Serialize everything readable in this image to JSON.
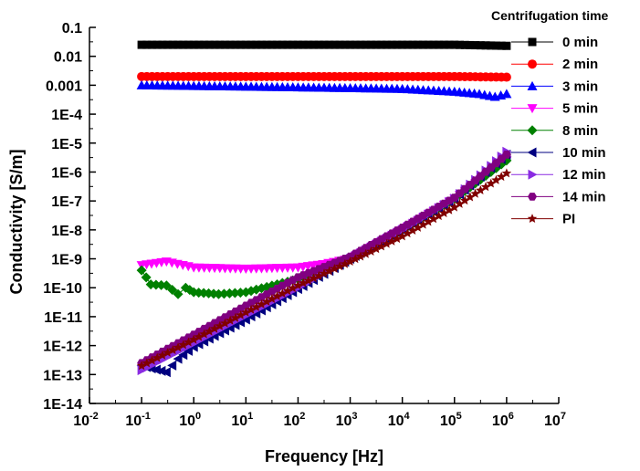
{
  "chart_data": {
    "type": "scatter",
    "xlabel": "Frequency [Hz]",
    "ylabel": "Conductivity [S/m]",
    "x_scale": "log",
    "y_scale": "log",
    "xlim": [
      0.01,
      10000000
    ],
    "ylim": [
      1e-14,
      0.1
    ],
    "x_ticks": [
      {
        "value": 0.01,
        "base": "10",
        "exp": "-2"
      },
      {
        "value": 0.1,
        "base": "10",
        "exp": "-1"
      },
      {
        "value": 1,
        "base": "10",
        "exp": "0"
      },
      {
        "value": 10,
        "base": "10",
        "exp": "1"
      },
      {
        "value": 100,
        "base": "10",
        "exp": "2"
      },
      {
        "value": 1000,
        "base": "10",
        "exp": "3"
      },
      {
        "value": 10000,
        "base": "10",
        "exp": "4"
      },
      {
        "value": 100000,
        "base": "10",
        "exp": "5"
      },
      {
        "value": 1000000,
        "base": "10",
        "exp": "6"
      },
      {
        "value": 10000000,
        "base": "10",
        "exp": "7"
      }
    ],
    "y_ticks": [
      {
        "value": 0.1,
        "label": "0.1"
      },
      {
        "value": 0.01,
        "label": "0.01"
      },
      {
        "value": 0.001,
        "label": "0.001"
      },
      {
        "value": 0.0001,
        "label": "1E-4"
      },
      {
        "value": 1e-05,
        "label": "1E-5"
      },
      {
        "value": 1e-06,
        "label": "1E-6"
      },
      {
        "value": 1e-07,
        "label": "1E-7"
      },
      {
        "value": 1e-08,
        "label": "1E-8"
      },
      {
        "value": 1e-09,
        "label": "1E-9"
      },
      {
        "value": 1e-10,
        "label": "1E-10"
      },
      {
        "value": 1e-11,
        "label": "1E-11"
      },
      {
        "value": 1e-12,
        "label": "1E-12"
      },
      {
        "value": 1e-13,
        "label": "1E-13"
      },
      {
        "value": 1e-14,
        "label": "1E-14"
      }
    ],
    "legend_title": "Centrifugation time",
    "legend_position": "right",
    "grid": false,
    "series": [
      {
        "name": "0 min",
        "color": "#000000",
        "marker": "square",
        "points": [
          [
            0.1,
            0.025
          ],
          [
            1,
            0.025
          ],
          [
            10,
            0.025
          ],
          [
            100,
            0.025
          ],
          [
            1000,
            0.025
          ],
          [
            10000,
            0.025
          ],
          [
            100000,
            0.025
          ],
          [
            1000000,
            0.023
          ]
        ]
      },
      {
        "name": "2 min",
        "color": "#ff0000",
        "marker": "circle",
        "points": [
          [
            0.1,
            0.002
          ],
          [
            1,
            0.002
          ],
          [
            10,
            0.002
          ],
          [
            100,
            0.002
          ],
          [
            1000,
            0.002
          ],
          [
            10000,
            0.002
          ],
          [
            100000,
            0.002
          ],
          [
            1000000,
            0.0019
          ]
        ]
      },
      {
        "name": "3 min",
        "color": "#0000ff",
        "marker": "triangle-up",
        "points": [
          [
            0.1,
            0.001
          ],
          [
            1,
            0.00095
          ],
          [
            10,
            0.0009
          ],
          [
            100,
            0.00085
          ],
          [
            1000,
            0.0008
          ],
          [
            10000,
            0.00075
          ],
          [
            100000,
            0.0006
          ],
          [
            300000,
            0.0005
          ],
          [
            600000,
            0.0004
          ],
          [
            1000000,
            0.0005
          ]
        ]
      },
      {
        "name": "5 min",
        "color": "#ff00ff",
        "marker": "triangle-down",
        "points": [
          [
            0.1,
            6e-10
          ],
          [
            0.3,
            8e-10
          ],
          [
            1,
            5e-10
          ],
          [
            10,
            4.5e-10
          ],
          [
            100,
            5e-10
          ],
          [
            300,
            6.5e-10
          ],
          [
            1000,
            1e-09
          ],
          [
            10000,
            1e-08
          ],
          [
            100000,
            1.2e-07
          ],
          [
            1000000,
            2.5e-06
          ]
        ]
      },
      {
        "name": "8 min",
        "color": "#008000",
        "marker": "diamond",
        "points": [
          [
            0.1,
            4e-10
          ],
          [
            0.15,
            1.3e-10
          ],
          [
            0.3,
            1.2e-10
          ],
          [
            0.5,
            6e-11
          ],
          [
            0.7,
            1e-10
          ],
          [
            1,
            7e-11
          ],
          [
            3,
            6e-11
          ],
          [
            10,
            7e-11
          ],
          [
            100,
            2e-10
          ],
          [
            1000,
            1e-09
          ],
          [
            10000,
            1e-08
          ],
          [
            100000,
            1.2e-07
          ],
          [
            1000000,
            2.5e-06
          ]
        ]
      },
      {
        "name": "10 min",
        "color": "#000080",
        "marker": "triangle-left",
        "points": [
          [
            0.1,
            2e-13
          ],
          [
            0.3,
            1.2e-13
          ],
          [
            0.5,
            3.5e-13
          ],
          [
            1,
            9e-13
          ],
          [
            10,
            8e-12
          ],
          [
            100,
            9e-11
          ],
          [
            1000,
            1e-09
          ],
          [
            10000,
            1e-08
          ],
          [
            100000,
            1.2e-07
          ],
          [
            1000000,
            4e-06
          ]
        ]
      },
      {
        "name": "12 min",
        "color": "#8a2be2",
        "marker": "triangle-right",
        "points": [
          [
            0.1,
            1.4e-13
          ],
          [
            1,
            1.2e-12
          ],
          [
            10,
            1.1e-11
          ],
          [
            100,
            1e-10
          ],
          [
            1000,
            1e-09
          ],
          [
            10000,
            1e-08
          ],
          [
            100000,
            1.2e-07
          ],
          [
            1000000,
            5e-06
          ]
        ]
      },
      {
        "name": "14 min",
        "color": "#800080",
        "marker": "hexagon",
        "points": [
          [
            0.1,
            2.5e-13
          ],
          [
            1,
            2.4e-12
          ],
          [
            10,
            2.4e-11
          ],
          [
            100,
            2.3e-10
          ],
          [
            1000,
            1.2e-09
          ],
          [
            10000,
            1.2e-08
          ],
          [
            100000,
            1.3e-07
          ],
          [
            1000000,
            4e-06
          ]
        ]
      },
      {
        "name": "PI",
        "color": "#800000",
        "marker": "star",
        "points": [
          [
            0.1,
            2e-13
          ],
          [
            1,
            1.6e-12
          ],
          [
            10,
            1.4e-11
          ],
          [
            100,
            1.2e-10
          ],
          [
            1000,
            8e-10
          ],
          [
            10000,
            6e-09
          ],
          [
            100000,
            6e-08
          ],
          [
            1000000,
            9e-07
          ]
        ]
      }
    ]
  }
}
